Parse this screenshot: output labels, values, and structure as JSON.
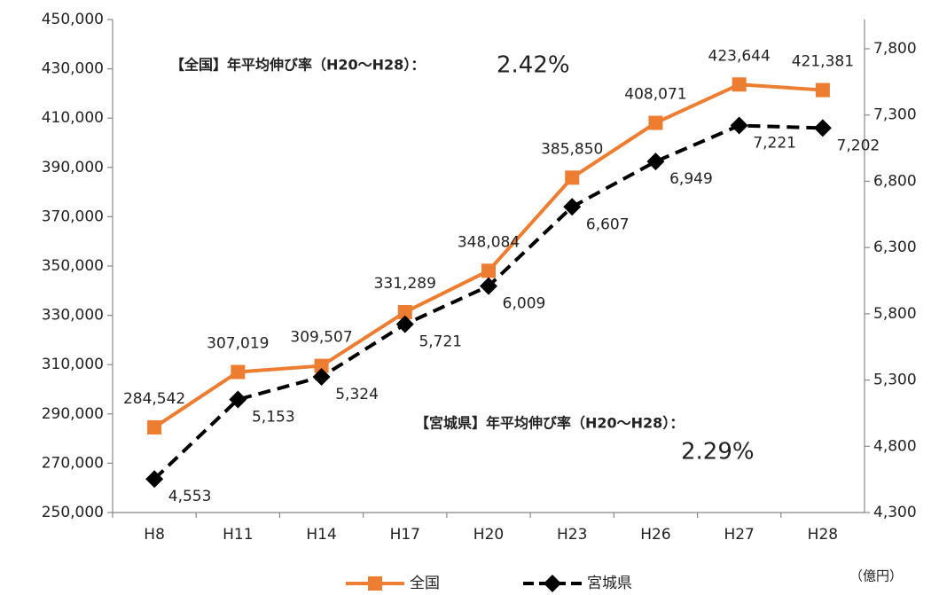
{
  "chart_data": {
    "type": "line",
    "categories": [
      "H8",
      "H11",
      "H14",
      "H17",
      "H20",
      "H23",
      "H26",
      "H27",
      "H28"
    ],
    "series": [
      {
        "name": "全国",
        "color": "#ed7d31",
        "marker": "square",
        "dashed": false,
        "values": [
          284542,
          307019,
          309507,
          331289,
          348084,
          385850,
          408071,
          423644,
          421381
        ],
        "value_labels": [
          "284,542",
          "307,019",
          "309,507",
          "331,289",
          "348,084",
          "385,850",
          "408,071",
          "423,644",
          "421,381"
        ]
      },
      {
        "name": "宮城県",
        "color": "#000000",
        "marker": "diamond",
        "dashed": true,
        "axis": "y2",
        "values": [
          4553,
          5153,
          5324,
          5721,
          6009,
          6607,
          6949,
          7221,
          7202
        ],
        "value_labels": [
          "4,553",
          "5,153",
          "5,324",
          "5,721",
          "6,009",
          "6,607",
          "6,949",
          "7,221",
          "7,202"
        ]
      }
    ],
    "ylim": [
      250000,
      450000
    ],
    "yticks": [
      {
        "value": 250000,
        "label": "250,000"
      },
      {
        "value": 270000,
        "label": "270,000"
      },
      {
        "value": 290000,
        "label": "290,000"
      },
      {
        "value": 310000,
        "label": "310,000"
      },
      {
        "value": 330000,
        "label": "330,000"
      },
      {
        "value": 350000,
        "label": "350,000"
      },
      {
        "value": 370000,
        "label": "370,000"
      },
      {
        "value": 390000,
        "label": "390,000"
      },
      {
        "value": 410000,
        "label": "410,000"
      },
      {
        "value": 430000,
        "label": "430,000"
      },
      {
        "value": 450000,
        "label": "450,000"
      }
    ],
    "y2lim": [
      4300,
      8021
    ],
    "y2ticks": [
      {
        "value": 4300,
        "label": "4,300"
      },
      {
        "value": 4800,
        "label": "4,800"
      },
      {
        "value": 5300,
        "label": "5,300"
      },
      {
        "value": 5800,
        "label": "5,800"
      },
      {
        "value": 6300,
        "label": "6,300"
      },
      {
        "value": 6800,
        "label": "6,800"
      },
      {
        "value": 7300,
        "label": "7,300"
      },
      {
        "value": 7800,
        "label": "7,800"
      }
    ],
    "annotations": [
      {
        "text": "【全国】年平均伸び率（H20～H28）：",
        "value": "2.42%"
      },
      {
        "text": "【宮城県】年平均伸び率（H20～H28）：",
        "value": "2.29%"
      }
    ],
    "unit": "（億円）",
    "grid": false
  }
}
